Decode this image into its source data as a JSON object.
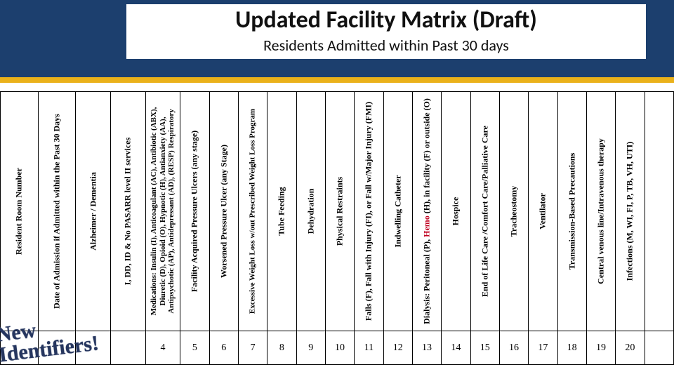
{
  "header": {
    "title": "Updated Facility Matrix (Draft)",
    "subtitle": "Residents Admitted within Past 30 days",
    "band_color": "#1c3f6e",
    "accent_color": "#eab11a"
  },
  "stamp": {
    "line1": "New",
    "line2": "Identifiers!"
  },
  "columns": [
    {
      "label": "Resident Room Number",
      "num": ""
    },
    {
      "label": "Date of Admission if Admitted within the Past 30 Days",
      "num": ""
    },
    {
      "label": "Alzheimer / Dementia",
      "num": ""
    },
    {
      "label": "I, DD, ID & No PASARR level II services",
      "num": ""
    },
    {
      "label": "Medications: Insulin (I), Anticoagulant (AC), Antibiotic (ABX), Diuretic (D), Opioid (O), Hypnotic (H), Antianxiety (AA), Antipsychotic (AP), Antidepressant (AD), (RESP) Respiratory",
      "num": "4",
      "small": true
    },
    {
      "label": "Facility Acquired Pressure Ulcers (any stage)",
      "num": "5"
    },
    {
      "label": "Worsened Pressure Ulcer (any Stage)",
      "num": "6"
    },
    {
      "label": "Excessive Weight Loss w/out Prescribed Weight Loss Program",
      "num": "7",
      "small": true
    },
    {
      "label": "Tube Feeding",
      "num": "8"
    },
    {
      "label": "Dehydration",
      "num": "9"
    },
    {
      "label": "Physical Restraints",
      "num": "10"
    },
    {
      "label": "Falls (F), Fall with Injury (FI), or Fall w/Major Injury (FMI)",
      "num": "11"
    },
    {
      "label": "Indwelling Catheter",
      "num": "12"
    },
    {
      "label": "Dialysis: Peritoneal (P), Hemo (H), in facility (F) or outside (O)",
      "num": "13",
      "red_word": "Hemo"
    },
    {
      "label": "Hospice",
      "num": "14"
    },
    {
      "label": "End of Life Care /Comfort Care/Palliative Care",
      "num": "15"
    },
    {
      "label": "Tracheostomy",
      "num": "16"
    },
    {
      "label": "Ventilator",
      "num": "17"
    },
    {
      "label": "Transmission-Based Precautions",
      "num": "18"
    },
    {
      "label": "Central venous line/Intravenous therapy",
      "num": "19"
    },
    {
      "label": "Infections (M, WI, FI, P, TB, VH, UTI)",
      "num": "20"
    },
    {
      "label": "",
      "num": ""
    }
  ]
}
